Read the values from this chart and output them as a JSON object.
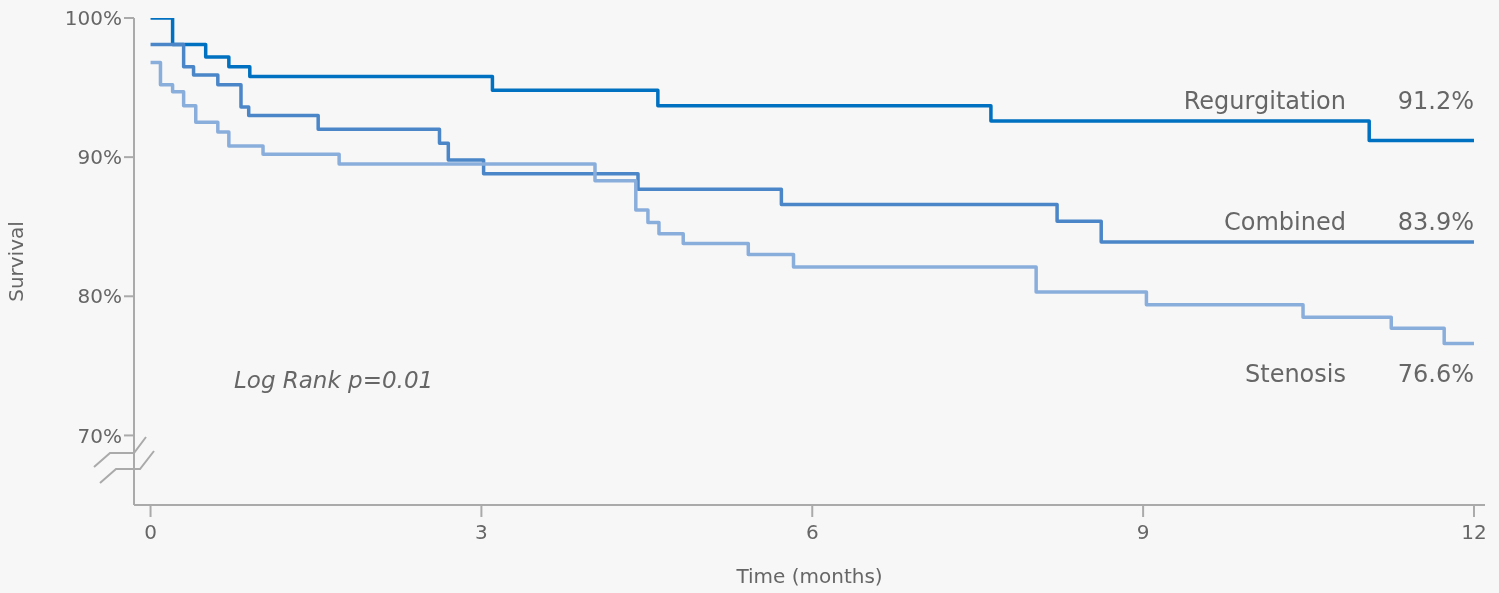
{
  "chart_data": {
    "type": "step",
    "xlabel": "Time (months)",
    "ylabel": "Survival",
    "xlim": [
      -0.15,
      12.1
    ],
    "xticks": [
      0,
      3,
      6,
      9,
      12
    ],
    "ylim": [
      65,
      100
    ],
    "yticks": [
      {
        "value": 70,
        "label": "70%"
      },
      {
        "value": 80,
        "label": "80%"
      },
      {
        "value": 90,
        "label": "90%"
      },
      {
        "value": 100,
        "label": "100%"
      }
    ],
    "grid": false,
    "line_style": "solid",
    "marker": "none",
    "series": [
      {
        "name": "Regurgitation",
        "color": "#0070c0",
        "x": [
          0,
          0.2,
          0.5,
          0.71,
          0.9,
          3.1,
          4.6,
          7.62,
          11.05,
          12
        ],
        "values": [
          100,
          98.1,
          97.2,
          96.5,
          95.8,
          94.8,
          93.7,
          92.6,
          91.2,
          91.2
        ],
        "value_labels": [
          null,
          null,
          null,
          null,
          null,
          null,
          null,
          null,
          null,
          "91.2%"
        ]
      },
      {
        "name": "Combined",
        "color": "#4a86c8",
        "x": [
          0,
          0.3,
          0.39,
          0.61,
          0.82,
          0.89,
          1.52,
          2.62,
          2.7,
          3.02,
          4.42,
          5.72,
          8.22,
          8.62,
          12
        ],
        "values": [
          98.1,
          96.5,
          95.9,
          95.2,
          93.6,
          93.0,
          92.0,
          91.0,
          89.8,
          88.8,
          87.7,
          86.6,
          85.4,
          83.9,
          83.9
        ],
        "value_labels": [
          null,
          null,
          null,
          null,
          null,
          null,
          null,
          null,
          null,
          null,
          null,
          null,
          null,
          null,
          "83.9%"
        ]
      },
      {
        "name": "Stenosis",
        "color": "#8aaedc",
        "x": [
          0,
          0.09,
          0.2,
          0.3,
          0.41,
          0.61,
          0.71,
          1.02,
          1.71,
          4.03,
          4.4,
          4.51,
          4.61,
          4.83,
          5.42,
          5.83,
          8.03,
          9.03,
          10.45,
          11.25,
          11.73,
          12
        ],
        "values": [
          96.8,
          95.2,
          94.7,
          93.7,
          92.5,
          91.8,
          90.8,
          90.2,
          89.5,
          88.3,
          86.2,
          85.3,
          84.5,
          83.8,
          83.0,
          82.1,
          80.3,
          79.4,
          78.5,
          77.7,
          76.6,
          76.6
        ],
        "value_labels": [
          null,
          null,
          null,
          null,
          null,
          null,
          null,
          null,
          null,
          null,
          null,
          null,
          null,
          null,
          null,
          null,
          null,
          null,
          null,
          null,
          null,
          "76.6%"
        ]
      }
    ],
    "annotations": [
      "Log Rank p=0.01"
    ]
  }
}
